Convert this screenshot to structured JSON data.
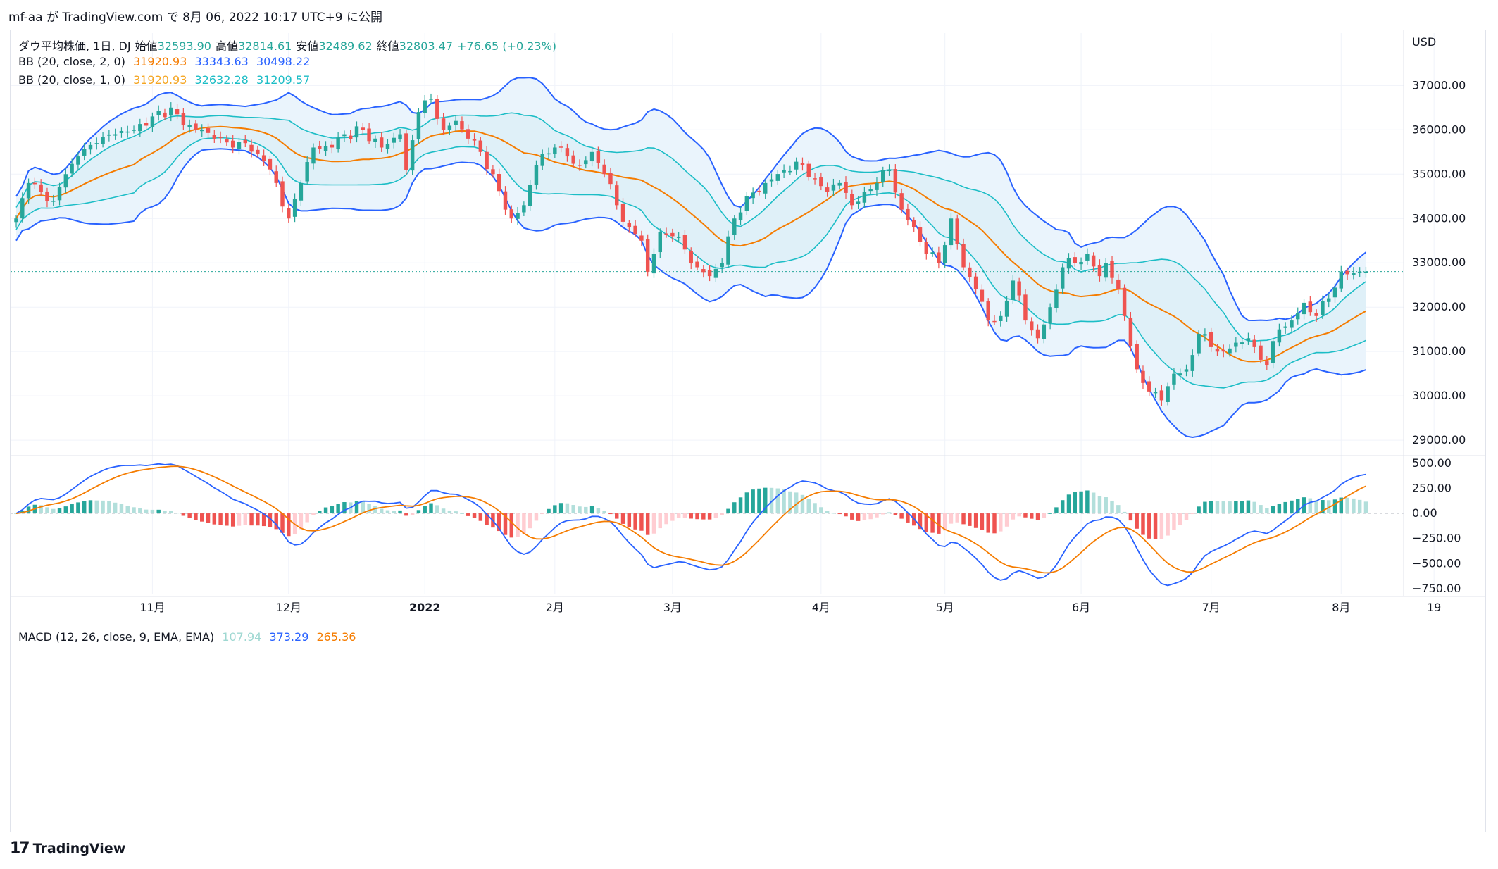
{
  "header": {
    "publish_line": "mf-aa が TradingView.com で 8月 06, 2022 10:17 UTC+9 に公開"
  },
  "legend": {
    "main": {
      "symbol": "ダウ平均株価, 1日, DJ",
      "open_label": "始値",
      "open": "32593.90",
      "high_label": "高値",
      "high": "32814.61",
      "low_label": "安値",
      "low": "32489.62",
      "close_label": "終値",
      "close": "32803.47",
      "change": "+76.65 (+0.23%)"
    },
    "bb2": {
      "label": "BB (20, close, 2, 0)",
      "basis": "31920.93",
      "upper": "33343.63",
      "lower": "30498.22"
    },
    "bb1": {
      "label": "BB (20, close, 1, 0)",
      "basis": "31920.93",
      "upper": "32632.28",
      "lower": "31209.57"
    },
    "macd": {
      "label": "MACD (12, 26, close, 9, EMA, EMA)",
      "hist": "107.94",
      "macd": "373.29",
      "signal": "265.36"
    }
  },
  "colors": {
    "up": "#26a69a",
    "down": "#ef5350",
    "up_light": "#b2dfdb",
    "down_light": "#ffcdd2",
    "bb_outer": "#2962ff",
    "bb_inner": "#1cbdc6",
    "basis": "#f57c00",
    "outer_fill": "#eaf4fc",
    "inner_fill": "#dff0f8",
    "macd_line": "#2962ff",
    "signal_line": "#f57c00",
    "grid": "#f0f3fa",
    "axis_text": "#131722"
  },
  "footer": {
    "brand": "TradingView",
    "logo_icon": "tradingview-logo-icon"
  },
  "chart_data": [
    {
      "type": "candlestick",
      "title": "ダウ平均株価, 1日, DJ",
      "currency_label": "USD",
      "x_tick_labels": [
        "11月",
        "12月",
        "2022",
        "2月",
        "3月",
        "4月",
        "5月",
        "6月",
        "7月",
        "8月",
        "19"
      ],
      "x_tick_index": [
        22,
        44,
        66,
        87,
        106,
        130,
        150,
        172,
        193,
        214,
        229
      ],
      "y_ticks": [
        29000,
        30000,
        31000,
        32000,
        33000,
        34000,
        35000,
        36000,
        37000
      ],
      "y_tick_labels": [
        "29000.00",
        "30000.00",
        "31000.00",
        "32000.00",
        "33000.00",
        "34000.00",
        "35000.00",
        "36000.00",
        "37000.00"
      ],
      "ylim": [
        28780,
        38180
      ],
      "last_price": 32803.47,
      "close_anchors": [
        [
          0,
          34000
        ],
        [
          2,
          34800
        ],
        [
          4,
          34600
        ],
        [
          6,
          34400
        ],
        [
          8,
          35000
        ],
        [
          10,
          35400
        ],
        [
          13,
          35700
        ],
        [
          16,
          35900
        ],
        [
          19,
          36000
        ],
        [
          22,
          36300
        ],
        [
          25,
          36500
        ],
        [
          27,
          36100
        ],
        [
          30,
          36000
        ],
        [
          32,
          35800
        ],
        [
          35,
          35600
        ],
        [
          37,
          35700
        ],
        [
          40,
          35300
        ],
        [
          42,
          34800
        ],
        [
          44,
          34000
        ],
        [
          46,
          34800
        ],
        [
          48,
          35600
        ],
        [
          51,
          35600
        ],
        [
          53,
          35900
        ],
        [
          56,
          36000
        ],
        [
          59,
          35600
        ],
        [
          62,
          35900
        ],
        [
          63,
          35100
        ],
        [
          65,
          36400
        ],
        [
          67,
          36700
        ],
        [
          69,
          36000
        ],
        [
          71,
          36200
        ],
        [
          73,
          35800
        ],
        [
          75,
          35500
        ],
        [
          77,
          35000
        ],
        [
          79,
          34200
        ],
        [
          80,
          34000
        ],
        [
          82,
          34300
        ],
        [
          84,
          35200
        ],
        [
          87,
          35600
        ],
        [
          89,
          35400
        ],
        [
          91,
          35200
        ],
        [
          93,
          35500
        ],
        [
          95,
          35000
        ],
        [
          97,
          34300
        ],
        [
          99,
          33800
        ],
        [
          101,
          33500
        ],
        [
          102,
          32800
        ],
        [
          104,
          33700
        ],
        [
          106,
          33600
        ],
        [
          108,
          33300
        ],
        [
          110,
          32900
        ],
        [
          112,
          32700
        ],
        [
          114,
          33000
        ],
        [
          116,
          34000
        ],
        [
          118,
          34500
        ],
        [
          121,
          34800
        ],
        [
          124,
          35100
        ],
        [
          127,
          35200
        ],
        [
          129,
          34900
        ],
        [
          131,
          34600
        ],
        [
          133,
          34800
        ],
        [
          135,
          34300
        ],
        [
          137,
          34600
        ],
        [
          139,
          34800
        ],
        [
          141,
          35100
        ],
        [
          143,
          34200
        ],
        [
          145,
          33800
        ],
        [
          147,
          33200
        ],
        [
          149,
          33000
        ],
        [
          151,
          34000
        ],
        [
          153,
          32900
        ],
        [
          155,
          32400
        ],
        [
          157,
          31700
        ],
        [
          159,
          31800
        ],
        [
          161,
          32600
        ],
        [
          163,
          31700
        ],
        [
          165,
          31300
        ],
        [
          167,
          32000
        ],
        [
          169,
          32900
        ],
        [
          171,
          33000
        ],
        [
          173,
          33200
        ],
        [
          175,
          32700
        ],
        [
          176,
          33000
        ],
        [
          178,
          32400
        ],
        [
          179,
          31800
        ],
        [
          181,
          30600
        ],
        [
          183,
          30100
        ],
        [
          185,
          29900
        ],
        [
          187,
          30500
        ],
        [
          189,
          30600
        ],
        [
          191,
          31400
        ],
        [
          193,
          31100
        ],
        [
          195,
          31000
        ],
        [
          197,
          31200
        ],
        [
          199,
          31300
        ],
        [
          200,
          31100
        ],
        [
          202,
          30700
        ],
        [
          204,
          31500
        ],
        [
          206,
          31700
        ],
        [
          208,
          32100
        ],
        [
          210,
          31800
        ],
        [
          212,
          32200
        ],
        [
          214,
          32800
        ],
        [
          217,
          32800
        ],
        [
          218,
          32803
        ]
      ],
      "bollinger": {
        "period": 20,
        "stdev_outer": 2,
        "stdev_inner": 1,
        "basis_last": 31920.93,
        "upper_outer_last": 33343.63,
        "lower_outer_last": 30498.22,
        "upper_inner_last": 32632.28,
        "lower_inner_last": 31209.57
      }
    },
    {
      "type": "macd",
      "title": "MACD (12, 26, close, 9, EMA, EMA)",
      "params": {
        "fast": 12,
        "slow": 26,
        "signal": 9
      },
      "y_ticks": [
        500,
        250,
        0,
        -250,
        -500,
        -750
      ],
      "y_tick_labels": [
        "500.00",
        "250.00",
        "0.00",
        "−250.00",
        "−500.00",
        "−750.00"
      ],
      "ylim": [
        -800,
        520
      ],
      "last": {
        "histogram": 107.94,
        "macd": 373.29,
        "signal": 265.36
      }
    }
  ]
}
